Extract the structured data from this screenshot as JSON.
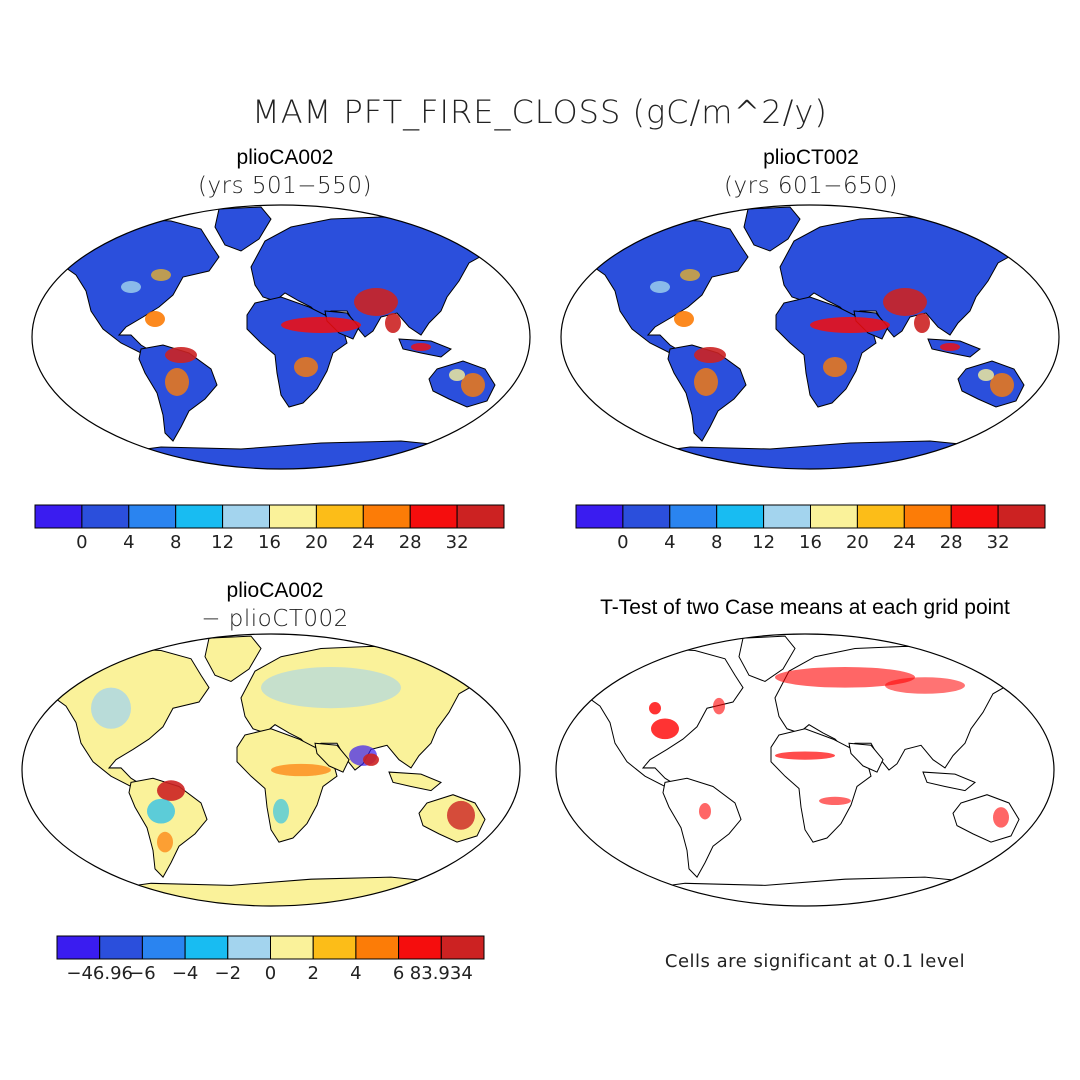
{
  "title": "MAM PFT_FIRE_CLOSS (gC/m^2/y)",
  "panels": [
    {
      "title": "plioCA002",
      "subtitle": "(yrs 501−550)"
    },
    {
      "title": "plioCT002",
      "subtitle": "(yrs 601−650)"
    },
    {
      "title": "plioCA002",
      "subtitle": "− plioCT002"
    },
    {
      "title": "T-Test of two Case means at each grid point",
      "subtitle": ""
    }
  ],
  "colorbars": {
    "abs": {
      "colors": [
        "#3a1cf0",
        "#2b4fdc",
        "#2a84f0",
        "#18bcf2",
        "#a3d4ee",
        "#faf29a",
        "#fcbd18",
        "#fc7c07",
        "#f50d0d",
        "#cc2222"
      ],
      "labels": [
        "0",
        "4",
        "8",
        "12",
        "16",
        "20",
        "24",
        "28",
        "32"
      ]
    },
    "diff": {
      "colors": [
        "#3a1cf0",
        "#2b4fdc",
        "#2a84f0",
        "#18bcf2",
        "#a3d4ee",
        "#faf29a",
        "#fcbd18",
        "#fc7c07",
        "#f50d0d",
        "#cc2222"
      ],
      "labels": [
        "−46.96",
        "−6",
        "−4",
        "−2",
        "0",
        "2",
        "4",
        "6",
        "83.934"
      ]
    }
  },
  "map_fill": {
    "panel1_land": "#2b4fdc",
    "panel2_land": "#2b4fdc",
    "panel3_land": "#faf29a",
    "panel4_land": "#ffffff",
    "significance_color": "#ff0000",
    "ocean": "#ffffff"
  },
  "note": "Cells are significant at 0.1 level"
}
